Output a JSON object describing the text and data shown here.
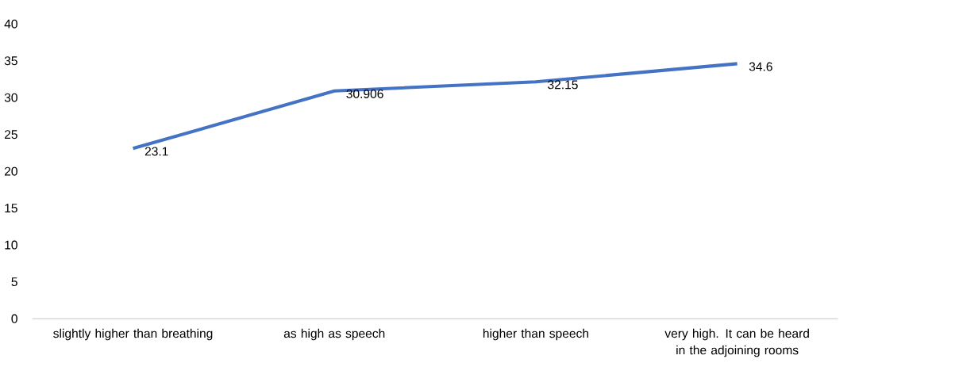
{
  "chart_data": {
    "type": "line",
    "categories": [
      "slightly higher than breathing",
      "as high as speech",
      "higher than speech",
      "very high. It can be heard in the adjoining rooms"
    ],
    "series": [
      {
        "color": "#4472c4",
        "values": [
          23.1,
          30.906,
          32.15,
          34.6
        ]
      }
    ],
    "ylim": [
      0,
      40
    ],
    "yticks": [
      0,
      5,
      10,
      15,
      20,
      25,
      30,
      35,
      40
    ],
    "data_labels": true,
    "line_style": "solid"
  }
}
